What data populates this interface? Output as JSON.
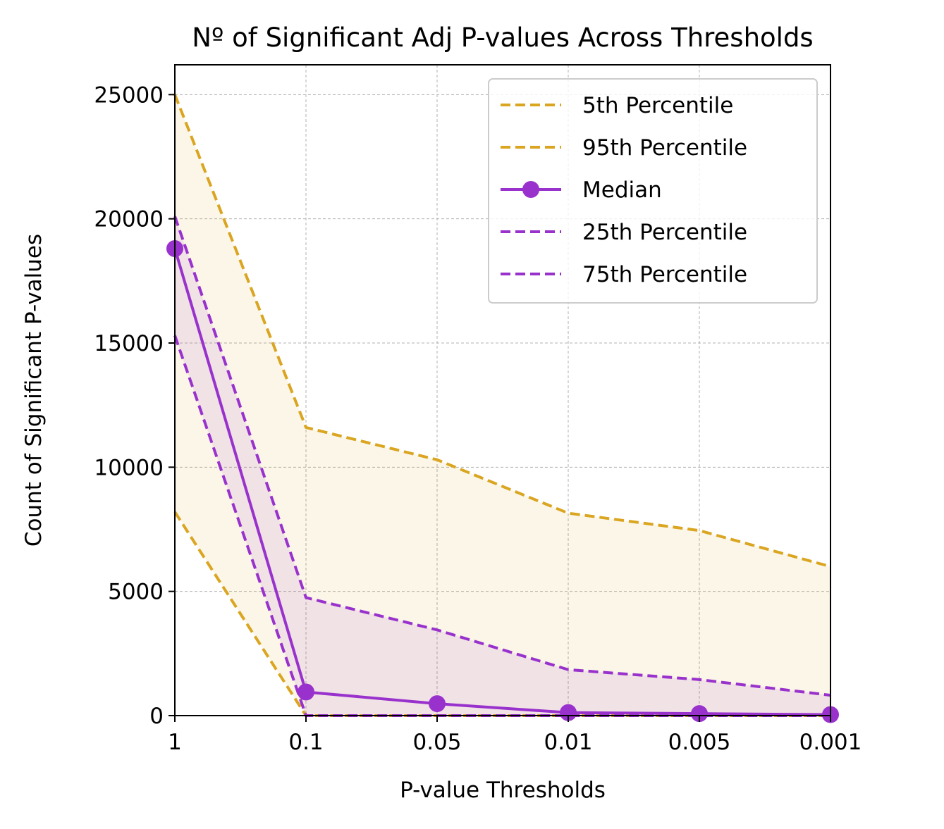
{
  "chart_data": {
    "type": "line",
    "title": "Nº of Significant Adj P-values Across Thresholds",
    "xlabel": "P-value Thresholds",
    "ylabel": "Count of Significant P-values",
    "categories": [
      "1",
      "0.1",
      "0.05",
      "0.01",
      "0.005",
      "0.001"
    ],
    "y_ticks": [
      0,
      5000,
      10000,
      15000,
      20000,
      25000
    ],
    "ylim": [
      0,
      26200
    ],
    "grid": true,
    "legend_position": "top-right",
    "series": [
      {
        "name": "5th Percentile",
        "values": [
          8200,
          0,
          0,
          0,
          0,
          0
        ],
        "color": "#DAA520",
        "style": "dashed"
      },
      {
        "name": "95th Percentile",
        "values": [
          25000,
          11600,
          10300,
          8150,
          7450,
          6000
        ],
        "color": "#DAA520",
        "style": "dashed"
      },
      {
        "name": "Median",
        "values": [
          18800,
          950,
          480,
          120,
          80,
          40
        ],
        "color": "#9932CC",
        "style": "solid-marker"
      },
      {
        "name": "25th Percentile",
        "values": [
          15300,
          0,
          0,
          0,
          0,
          0
        ],
        "color": "#9932CC",
        "style": "dashed"
      },
      {
        "name": "75th Percentile",
        "values": [
          20100,
          4750,
          3450,
          1850,
          1450,
          820
        ],
        "color": "#9932CC",
        "style": "dashed"
      }
    ],
    "bands": [
      {
        "between": [
          "5th Percentile",
          "95th Percentile"
        ],
        "color": "#DAA520",
        "opacity": 0.1
      },
      {
        "between": [
          "25th Percentile",
          "75th Percentile"
        ],
        "color": "#9932CC",
        "opacity": 0.1
      }
    ]
  }
}
